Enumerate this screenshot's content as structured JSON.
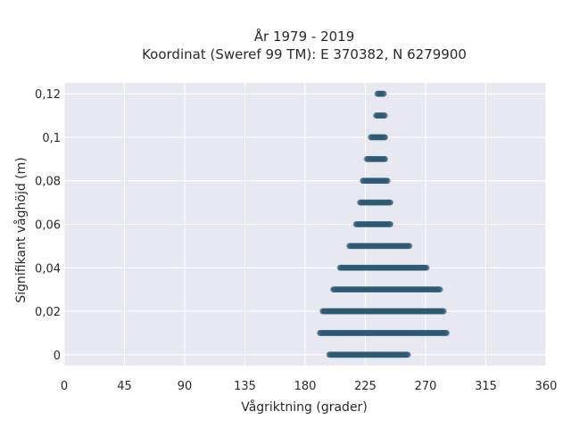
{
  "chart_data": {
    "type": "scatter",
    "title": "År 1979 - 2019",
    "subtitle": "Koordinat (Sweref 99 TM): E 370382, N 6279900",
    "xlabel": "Vågriktning (grader)",
    "ylabel": "Signifikant våghöjd (m)",
    "xlim": [
      0,
      360
    ],
    "ylim": [
      -0.005,
      0.125
    ],
    "xticks": [
      0,
      45,
      90,
      135,
      180,
      225,
      270,
      315,
      360
    ],
    "xtick_labels": [
      "0",
      "45",
      "90",
      "135",
      "180",
      "225",
      "270",
      "315",
      "360"
    ],
    "yticks": [
      0,
      0.02,
      0.04,
      0.06,
      0.08,
      0.1,
      0.12
    ],
    "ytick_labels": [
      "0",
      "0,02",
      "0,04",
      "0,06",
      "0,08",
      "0,1",
      "0,12"
    ],
    "grid": true,
    "marker_color": "#2e5a73",
    "plot_background": "#e8e8f0",
    "point_bands": [
      {
        "wave_height": 0.0,
        "dir_min": 198,
        "dir_max": 257
      },
      {
        "wave_height": 0.01,
        "dir_min": 191,
        "dir_max": 286
      },
      {
        "wave_height": 0.02,
        "dir_min": 193,
        "dir_max": 284
      },
      {
        "wave_height": 0.03,
        "dir_min": 201,
        "dir_max": 281
      },
      {
        "wave_height": 0.04,
        "dir_min": 206,
        "dir_max": 271
      },
      {
        "wave_height": 0.05,
        "dir_min": 213,
        "dir_max": 258
      },
      {
        "wave_height": 0.06,
        "dir_min": 218,
        "dir_max": 244
      },
      {
        "wave_height": 0.07,
        "dir_min": 221,
        "dir_max": 244
      },
      {
        "wave_height": 0.08,
        "dir_min": 223,
        "dir_max": 242
      },
      {
        "wave_height": 0.09,
        "dir_min": 226,
        "dir_max": 240
      },
      {
        "wave_height": 0.1,
        "dir_min": 229,
        "dir_max": 240
      },
      {
        "wave_height": 0.11,
        "dir_min": 233,
        "dir_max": 240
      },
      {
        "wave_height": 0.12,
        "dir_min": 234,
        "dir_max": 239
      }
    ]
  }
}
